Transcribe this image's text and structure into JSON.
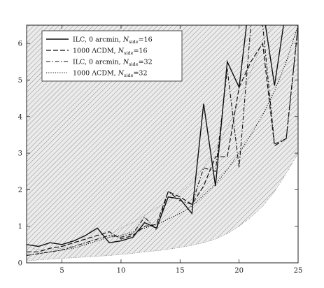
{
  "chart_data": {
    "type": "line",
    "title": "",
    "xlabel": "",
    "ylabel": "",
    "xlim": [
      2,
      25
    ],
    "ylim": [
      0,
      6.5
    ],
    "x_ticks": [
      5,
      10,
      15,
      20,
      25
    ],
    "y_ticks": [
      0,
      1,
      2,
      3,
      4,
      5,
      6
    ],
    "grid": false,
    "legend_position": "top-left",
    "x": [
      2,
      3,
      4,
      5,
      6,
      7,
      8,
      9,
      10,
      11,
      12,
      13,
      14,
      15,
      16,
      17,
      18,
      19,
      20,
      21,
      22,
      23,
      24,
      25
    ],
    "series": [
      {
        "name": "ILC, 0 arcmin, N_side=16",
        "legend": {
          "main": "ILC, 0 arcmin, ",
          "sym": "N",
          "sub": "side",
          "tail": "=16"
        },
        "style": "solid",
        "values": [
          0.5,
          0.45,
          0.55,
          0.5,
          0.6,
          0.75,
          0.95,
          0.55,
          0.6,
          0.7,
          1.1,
          0.95,
          1.8,
          1.75,
          1.35,
          4.35,
          2.1,
          5.5,
          4.8,
          7.5,
          7.0,
          4.85,
          7.0,
          7.0
        ]
      },
      {
        "name": "1000 ΛCDM, N_side=16",
        "legend": {
          "main": "1000 ΛCDM, ",
          "sym": "N",
          "sub": "side",
          "tail": "=16"
        },
        "style": "dashed",
        "values": [
          0.3,
          0.3,
          0.4,
          0.45,
          0.55,
          0.65,
          0.75,
          0.85,
          0.65,
          0.75,
          1.0,
          1.05,
          1.95,
          1.8,
          1.6,
          2.1,
          2.9,
          2.9,
          4.8,
          5.5,
          6.0,
          3.2,
          3.4,
          6.5
        ]
      },
      {
        "name": "ILC, 0 arcmin, N_side=32",
        "legend": {
          "main": "ILC, 0 arcmin, ",
          "sym": "N",
          "sub": "side",
          "tail": "=32"
        },
        "style": "dashdot",
        "values": [
          0.2,
          0.25,
          0.3,
          0.35,
          0.45,
          0.55,
          0.65,
          0.75,
          0.7,
          0.8,
          1.25,
          0.9,
          1.95,
          1.7,
          1.6,
          2.6,
          2.5,
          5.3,
          2.6,
          6.5,
          6.5,
          3.25,
          3.4,
          6.5
        ]
      },
      {
        "name": "1000 ΛCDM, N_side=32",
        "legend": {
          "main": "1000 ΛCDM, ",
          "sym": "N",
          "sub": "side",
          "tail": "=32"
        },
        "style": "dotted",
        "values": [
          0.2,
          0.25,
          0.3,
          0.35,
          0.4,
          0.5,
          0.6,
          0.7,
          0.75,
          0.85,
          0.95,
          1.05,
          1.2,
          1.35,
          1.55,
          1.85,
          2.15,
          2.55,
          3.0,
          3.5,
          4.05,
          4.7,
          5.5,
          6.5
        ]
      }
    ],
    "bands": [
      {
        "style": "hatched",
        "x": [
          2,
          3,
          4,
          5,
          6,
          7,
          8,
          9,
          10,
          11,
          12,
          13,
          14,
          15,
          16,
          17,
          18,
          19,
          20,
          21,
          22,
          23,
          24,
          25
        ],
        "upper": [
          1.15,
          0.95,
          0.9,
          0.95,
          1.05,
          1.2,
          1.4,
          1.65,
          1.95,
          2.3,
          2.7,
          3.25,
          3.3,
          3.75,
          4.05,
          4.8,
          5.5,
          6.5,
          6.5,
          6.5,
          6.5,
          6.5,
          6.5,
          6.5
        ],
        "lower": [
          0.05,
          0.08,
          0.1,
          0.12,
          0.14,
          0.16,
          0.18,
          0.2,
          0.23,
          0.26,
          0.3,
          0.33,
          0.37,
          0.42,
          0.48,
          0.55,
          0.65,
          0.8,
          1.0,
          1.25,
          1.55,
          1.95,
          2.45,
          3.0
        ]
      },
      {
        "style": "hatched",
        "x": [
          2,
          3,
          4,
          5,
          6,
          7,
          8,
          9,
          10,
          11,
          12,
          13,
          14,
          15,
          16,
          17,
          18,
          19,
          20,
          21,
          22,
          23,
          24,
          25
        ],
        "upper": [
          6.5,
          6.5,
          6.5,
          6.5,
          6.5,
          6.5,
          6.5,
          6.5,
          6.5,
          6.5,
          6.5,
          6.5,
          6.5,
          6.5,
          6.5,
          6.5,
          6.5,
          6.5,
          6.5,
          6.5,
          6.5,
          6.5,
          6.5,
          6.5
        ],
        "lower": [
          0.45,
          0.35,
          0.35,
          0.4,
          0.45,
          0.55,
          0.65,
          0.75,
          0.95,
          1.1,
          1.3,
          1.5,
          1.7,
          1.9,
          2.2,
          2.6,
          3.1,
          3.7,
          4.4,
          5.2,
          6.1,
          6.5,
          6.5,
          6.5
        ]
      }
    ]
  }
}
